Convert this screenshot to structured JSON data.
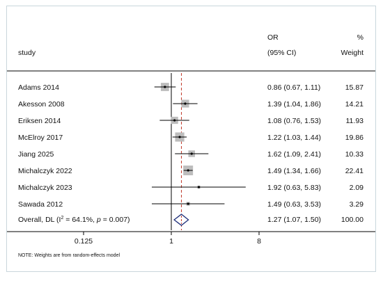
{
  "chart_data": {
    "type": "forest",
    "header": {
      "study": "study",
      "or_line1": "OR",
      "or_line2": "(95% CI)",
      "weight_line1": "%",
      "weight_line2": "Weight"
    },
    "x_scale": "log",
    "xlim": [
      0.05,
      12
    ],
    "x_ticks": [
      {
        "value": 0.125,
        "label": "0.125"
      },
      {
        "value": 1,
        "label": "1"
      },
      {
        "value": 8,
        "label": "8"
      }
    ],
    "null_line": 1,
    "overall_line": 1.27,
    "studies": [
      {
        "label": "Adams 2014",
        "or": 0.86,
        "lo": 0.67,
        "hi": 1.11,
        "ci_text": "0.86 (0.67, 1.11)",
        "weight": 15.87,
        "weight_text": "15.87"
      },
      {
        "label": "Akesson 2008",
        "or": 1.39,
        "lo": 1.04,
        "hi": 1.86,
        "ci_text": "1.39 (1.04, 1.86)",
        "weight": 14.21,
        "weight_text": "14.21"
      },
      {
        "label": "Eriksen 2014",
        "or": 1.08,
        "lo": 0.76,
        "hi": 1.53,
        "ci_text": "1.08 (0.76, 1.53)",
        "weight": 11.93,
        "weight_text": "11.93"
      },
      {
        "label": "McElroy 2017",
        "or": 1.22,
        "lo": 1.03,
        "hi": 1.44,
        "ci_text": "1.22 (1.03, 1.44)",
        "weight": 19.86,
        "weight_text": "19.86"
      },
      {
        "label": "Jiang 2025",
        "or": 1.62,
        "lo": 1.09,
        "hi": 2.41,
        "ci_text": "1.62 (1.09, 2.41)",
        "weight": 10.33,
        "weight_text": "10.33"
      },
      {
        "label": "Michalczyk 2022",
        "or": 1.49,
        "lo": 1.34,
        "hi": 1.66,
        "ci_text": "1.49 (1.34, 1.66)",
        "weight": 22.41,
        "weight_text": "22.41"
      },
      {
        "label": "Michalczyk 2023",
        "or": 1.92,
        "lo": 0.63,
        "hi": 5.83,
        "ci_text": "1.92 (0.63, 5.83)",
        "weight": 2.09,
        "weight_text": "2.09"
      },
      {
        "label": "Sawada 2012",
        "or": 1.49,
        "lo": 0.63,
        "hi": 3.53,
        "ci_text": "1.49 (0.63, 3.53)",
        "weight": 3.29,
        "weight_text": "3.29"
      }
    ],
    "overall": {
      "label_prefix": "Overall, DL (I",
      "label_sup": "2",
      "label_mid": " = 64.1%, ",
      "label_p": "p",
      "label_end": " = 0.007)",
      "or": 1.27,
      "lo": 1.07,
      "hi": 1.5,
      "ci_text": "1.27 (1.07, 1.50)",
      "weight_text": "100.00"
    },
    "note": "NOTE: Weights are from random-effects model",
    "colors": {
      "box": "#bdbdbd",
      "line": "#000000",
      "null_line": "#000000",
      "overall_line": "#c0392b",
      "diamond": "#1f2f7a",
      "background_border": "#c9d6dc"
    }
  }
}
